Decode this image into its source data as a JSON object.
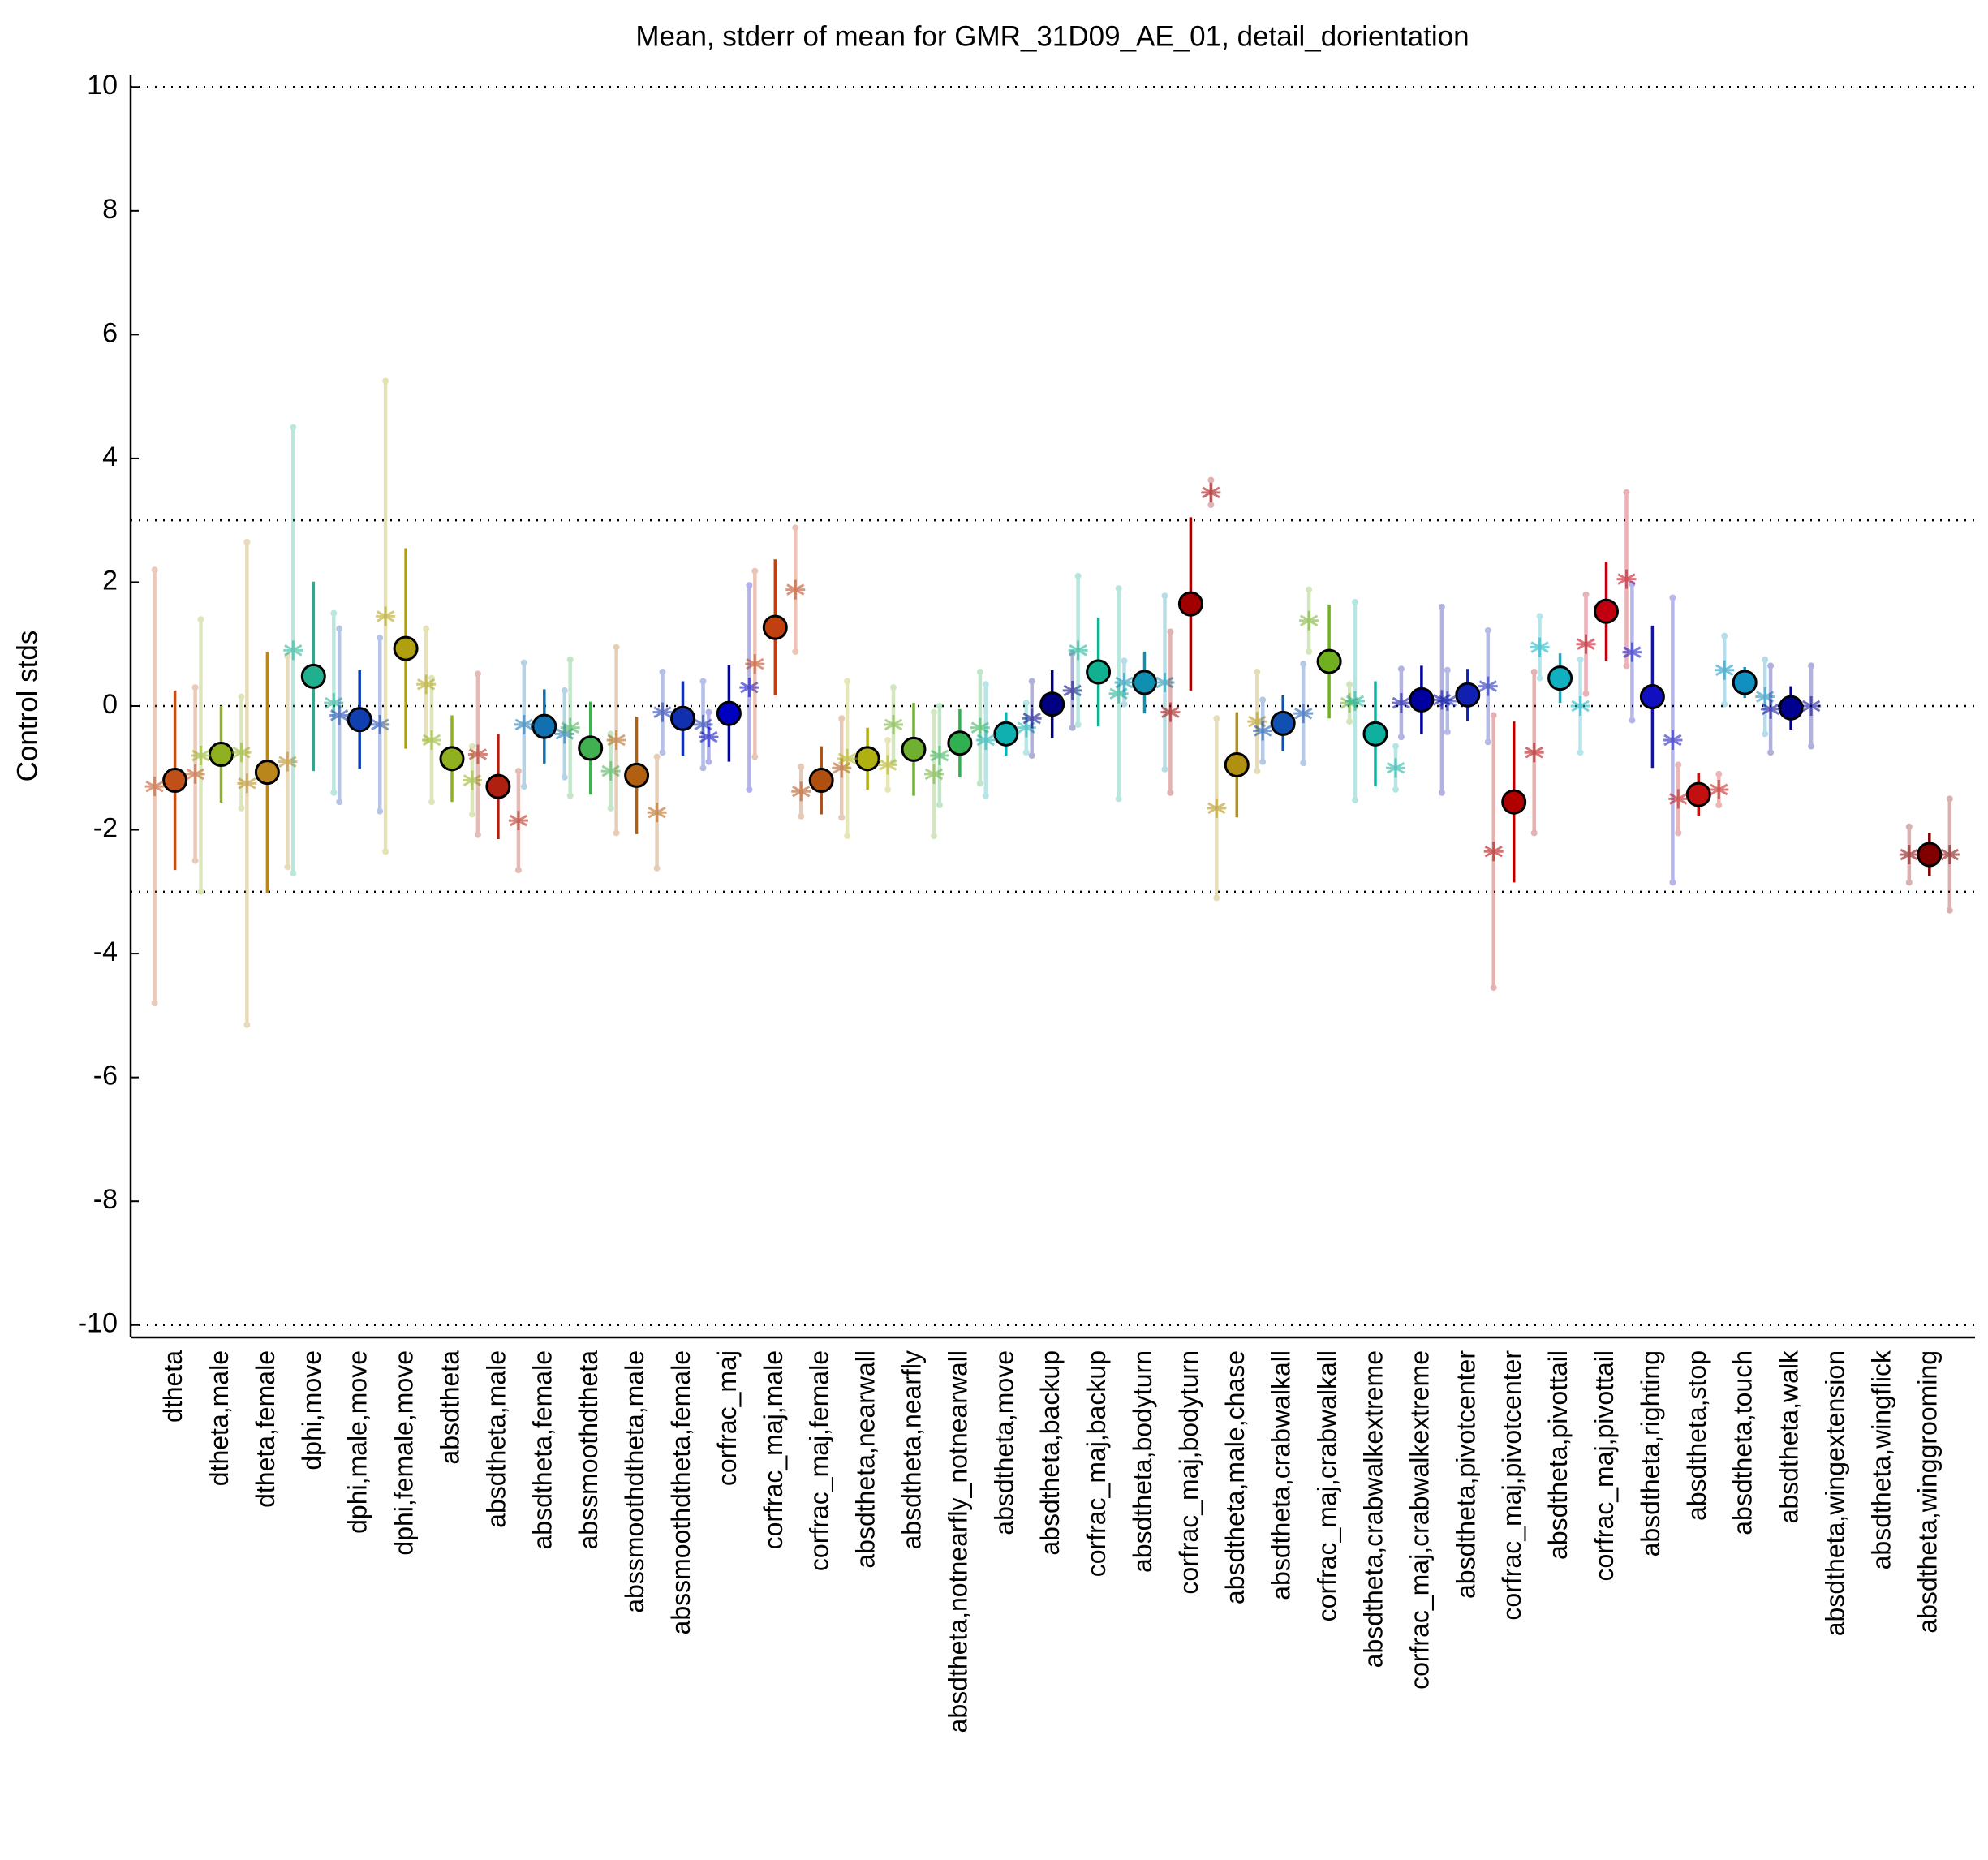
{
  "chart_data": {
    "type": "errorbar",
    "title": "Mean, stderr of mean for GMR_31D09_AE_01, detail_dorientation",
    "y_label": "Control stds",
    "ylim": [
      -10.2,
      10.2
    ],
    "yticks": [
      -10,
      -8,
      -6,
      -4,
      -2,
      0,
      2,
      4,
      6,
      8,
      10
    ],
    "reference_lines": [
      -10,
      -3,
      0,
      3,
      10
    ],
    "categories": [
      "dtheta",
      "dtheta,male",
      "dtheta,female",
      "dphi,move",
      "dphi,male,move",
      "dphi,female,move",
      "absdtheta",
      "absdtheta,male",
      "absdtheta,female",
      "abssmoothdtheta",
      "abssmoothdtheta,male",
      "abssmoothdtheta,female",
      "corfrac_maj",
      "corfrac_maj,male",
      "corfrac_maj,female",
      "absdtheta,nearwall",
      "absdtheta,nearfly",
      "absdtheta,notnearfly_notnearwall",
      "absdtheta,move",
      "absdtheta,backup",
      "corfrac_maj,backup",
      "absdtheta,bodyturn",
      "corfrac_maj,bodyturn",
      "absdtheta,male,chase",
      "absdtheta,crabwalkall",
      "corfrac_maj,crabwalkall",
      "absdtheta,crabwalkextreme",
      "corfrac_maj,crabwalkextreme",
      "absdtheta,pivotcenter",
      "corfrac_maj,pivotcenter",
      "absdtheta,pivottail",
      "corfrac_maj,pivottail",
      "absdtheta,righting",
      "absdtheta,stop",
      "absdtheta,touch",
      "absdtheta,walk",
      "absdtheta,wingextension",
      "absdtheta,wingflick",
      "absdtheta,winggrooming"
    ],
    "colors": [
      "#c0501a",
      "#8fb020",
      "#b8861a",
      "#20b090",
      "#1040b0",
      "#b0a010",
      "#90b020",
      "#b02010",
      "#1070b0",
      "#40b050",
      "#b06010",
      "#1030b0",
      "#0000c0",
      "#c04010",
      "#b05010",
      "#b0b010",
      "#70b030",
      "#30b050",
      "#10b0b0",
      "#000080",
      "#10b090",
      "#1090b0",
      "#a00000",
      "#b09010",
      "#1050b0",
      "#70b020",
      "#10b0a0",
      "#0000a0",
      "#1020b0",
      "#b00000",
      "#10b0c0",
      "#c00010",
      "#1010c0",
      "#c01010",
      "#1090c0",
      "#000090",
      "#a0a0a0",
      "#a0a0a0",
      "#800000"
    ],
    "series": [
      {
        "marker": "circle",
        "values": [
          -1.2,
          -0.78,
          -1.07,
          0.48,
          -0.22,
          0.93,
          -0.85,
          -1.3,
          -0.33,
          -0.68,
          -1.12,
          -0.2,
          -0.12,
          1.27,
          -1.2,
          -0.85,
          -0.7,
          -0.6,
          -0.45,
          0.03,
          0.55,
          0.38,
          1.65,
          -0.95,
          -0.28,
          0.72,
          -0.45,
          0.1,
          0.18,
          -1.55,
          0.45,
          1.53,
          0.15,
          -1.43,
          0.38,
          -0.03,
          null,
          null,
          -2.4
        ],
        "errors": [
          1.45,
          0.78,
          1.95,
          1.53,
          0.8,
          1.62,
          0.7,
          0.85,
          0.6,
          0.75,
          0.95,
          0.6,
          0.78,
          1.1,
          0.55,
          0.5,
          0.75,
          0.55,
          0.35,
          0.55,
          0.88,
          0.5,
          1.4,
          0.85,
          0.45,
          0.92,
          0.85,
          0.55,
          0.42,
          1.3,
          0.4,
          0.8,
          1.15,
          0.35,
          0.25,
          0.35,
          null,
          null,
          0.35
        ]
      },
      {
        "marker": "asterisk",
        "side": "left",
        "values": [
          -1.3,
          -0.8,
          -1.25,
          0.9,
          -0.15,
          1.45,
          -0.55,
          -0.78,
          -0.3,
          -0.35,
          -0.55,
          -0.1,
          -0.5,
          0.68,
          -1.38,
          -0.85,
          -0.3,
          -0.8,
          -0.55,
          -0.2,
          0.9,
          0.38,
          -0.1,
          -1.65,
          -0.4,
          1.38,
          0.08,
          0.05,
          0.08,
          -2.35,
          0.95,
          1.0,
          0.87,
          -1.5,
          0.58,
          -0.05,
          null,
          null,
          -2.4
        ],
        "errors": [
          3.5,
          2.2,
          3.9,
          3.6,
          1.4,
          3.8,
          1.0,
          1.3,
          1.0,
          1.1,
          1.5,
          0.65,
          0.4,
          1.5,
          0.4,
          1.25,
          0.6,
          0.8,
          0.9,
          0.6,
          1.2,
          0.35,
          1.3,
          1.45,
          0.5,
          0.5,
          1.6,
          0.55,
          0.5,
          2.2,
          0.5,
          0.8,
          1.1,
          0.55,
          0.55,
          0.7,
          null,
          null,
          0.45
        ]
      },
      {
        "marker": "asterisk",
        "side": "right",
        "values": [
          -1.1,
          -0.75,
          -0.9,
          0.05,
          -0.3,
          0.35,
          -1.2,
          -1.85,
          -0.45,
          -1.05,
          -1.72,
          -0.3,
          0.3,
          1.88,
          -1.0,
          -0.95,
          -1.1,
          -0.35,
          -0.35,
          0.25,
          0.2,
          0.38,
          3.45,
          -0.25,
          -0.12,
          0.05,
          -1.0,
          0.1,
          0.32,
          -0.75,
          0.0,
          2.05,
          -0.55,
          -1.35,
          0.15,
          0.0,
          null,
          null,
          -2.4
        ],
        "errors": [
          1.4,
          0.9,
          1.7,
          1.45,
          1.4,
          0.9,
          0.55,
          0.8,
          0.7,
          0.6,
          0.9,
          0.7,
          1.65,
          1.0,
          0.8,
          0.4,
          1.0,
          0.9,
          0.4,
          0.6,
          1.7,
          1.4,
          0.2,
          0.8,
          0.8,
          0.3,
          0.35,
          1.5,
          0.9,
          1.3,
          0.75,
          1.4,
          2.3,
          0.25,
          0.6,
          0.65,
          null,
          null,
          0.9
        ]
      }
    ]
  }
}
